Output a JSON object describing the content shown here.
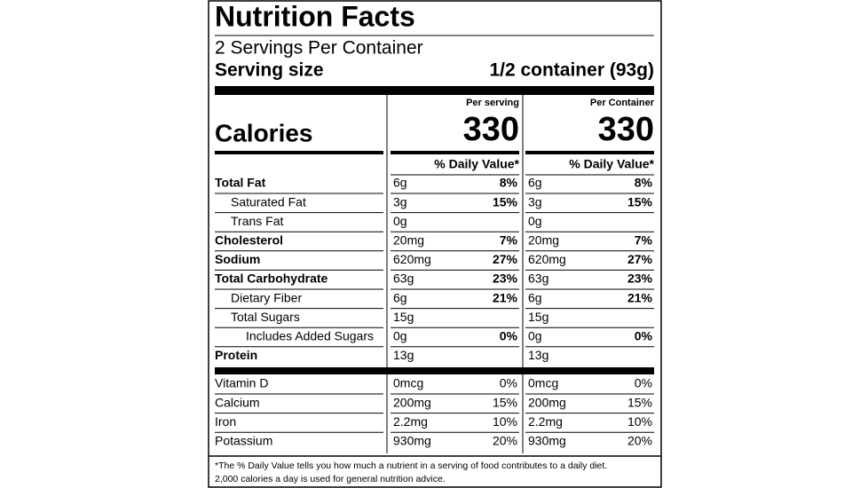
{
  "header": {
    "title": "Nutrition Facts",
    "servings": "2 Servings Per Container",
    "serving_size_label": "Serving size",
    "serving_size_value": "1/2 container (93g)"
  },
  "calories_label": "Calories",
  "columns": [
    {
      "heading": "Per serving",
      "calories": 330,
      "dv_heading": "% Daily Value*"
    },
    {
      "heading": "Per Container",
      "calories": 330,
      "dv_heading": "% Daily Value*"
    }
  ],
  "nutrients": [
    {
      "name": "Total Fat",
      "cols": [
        [
          "6g",
          "8%"
        ],
        [
          "6g",
          "8%"
        ]
      ]
    },
    {
      "name": "Saturated Fat",
      "cols": [
        [
          "3g",
          "15%"
        ],
        [
          "3g",
          "15%"
        ]
      ]
    },
    {
      "name": "Trans Fat",
      "cols": [
        [
          "0g",
          null
        ],
        [
          "0g",
          null
        ]
      ]
    },
    {
      "name": "Cholesterol",
      "cols": [
        [
          "20mg",
          "7%"
        ],
        [
          "20mg",
          "7%"
        ]
      ]
    },
    {
      "name": "Sodium",
      "cols": [
        [
          "620mg",
          "27%"
        ],
        [
          "620mg",
          "27%"
        ]
      ]
    },
    {
      "name": "Total Carbohydrate",
      "cols": [
        [
          "63g",
          "23%"
        ],
        [
          "63g",
          "23%"
        ]
      ]
    },
    {
      "name": "Dietary Fiber",
      "cols": [
        [
          "6g",
          "21%"
        ],
        [
          "6g",
          "21%"
        ]
      ]
    },
    {
      "name": "Total Sugars",
      "cols": [
        [
          "15g",
          null
        ],
        [
          "15g",
          null
        ]
      ]
    },
    {
      "name": "Includes Added Sugars",
      "cols": [
        [
          "0g",
          "0%"
        ],
        [
          "0g",
          "0%"
        ]
      ]
    },
    {
      "name": "Protein",
      "cols": [
        [
          "13g",
          null
        ],
        [
          "13g",
          null
        ]
      ]
    }
  ],
  "vitamins": [
    {
      "name": "Vitamin D",
      "cols": [
        [
          "0mcg",
          "0%"
        ],
        [
          "0mcg",
          "0%"
        ]
      ]
    },
    {
      "name": "Calcium",
      "cols": [
        [
          "200mg",
          "15%"
        ],
        [
          "200mg",
          "15%"
        ]
      ]
    },
    {
      "name": "Iron",
      "cols": [
        [
          "2.2mg",
          "10%"
        ],
        [
          "2.2mg",
          "10%"
        ]
      ]
    },
    {
      "name": "Potassium",
      "cols": [
        [
          "930mg",
          "20%"
        ],
        [
          "930mg",
          "20%"
        ]
      ]
    }
  ],
  "footnote": [
    "*The % Daily Value tells you how much a nutrient in a serving of food contributes to a daily diet.",
    "2,000 calories a day is used for general nutrition advice."
  ]
}
